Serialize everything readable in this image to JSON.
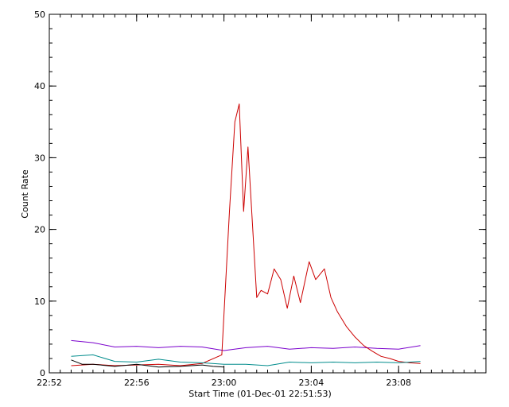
{
  "chart_data": {
    "type": "line",
    "title": "",
    "xlabel": "Start Time (01-Dec-01 22:51:53)",
    "ylabel": "Count Rate",
    "x_axis": {
      "range_minutes": [
        0,
        20
      ],
      "tick_labels": [
        "22:52",
        "22:56",
        "23:00",
        "23:04",
        "23:08"
      ],
      "tick_minutes": [
        0,
        4,
        8,
        12,
        16
      ],
      "minor_tick_step_minutes": 0.5
    },
    "y_axis": {
      "range": [
        0,
        50
      ],
      "tick_labels": [
        "0",
        "10",
        "20",
        "30",
        "40",
        "50"
      ],
      "tick_values": [
        0,
        10,
        20,
        30,
        40,
        50
      ],
      "minor_tick_step": 2
    },
    "grid": false,
    "legend": "none",
    "series_colors": {
      "red": "#cc0000",
      "purple": "#7a00cc",
      "teal": "#008c8c",
      "black": "#000000"
    },
    "series": [
      {
        "color_key": "purple",
        "x": [
          1.0,
          2.0,
          3.0,
          4.0,
          5.0,
          6.0,
          7.0,
          8.0,
          9.0,
          10.0,
          11.0,
          12.0,
          13.0,
          14.0,
          15.0,
          16.0,
          17.0
        ],
        "y": [
          4.5,
          4.2,
          3.6,
          3.7,
          3.5,
          3.7,
          3.6,
          3.1,
          3.5,
          3.7,
          3.3,
          3.5,
          3.4,
          3.6,
          3.4,
          3.3,
          3.8
        ]
      },
      {
        "color_key": "red",
        "x": [
          1.0,
          2.0,
          3.0,
          4.0,
          5.0,
          6.0,
          7.0,
          7.9,
          8.25,
          8.5,
          8.7,
          8.9,
          9.1,
          9.3,
          9.5,
          9.7,
          10.0,
          10.3,
          10.6,
          10.9,
          11.2,
          11.5,
          11.9,
          12.2,
          12.6,
          12.9,
          13.2,
          13.6,
          14.0,
          14.4,
          14.8,
          15.2,
          15.6,
          16.0,
          16.5,
          17.0
        ],
        "y": [
          1.0,
          1.2,
          1.0,
          1.1,
          1.2,
          1.0,
          1.3,
          2.5,
          22.5,
          35.0,
          37.5,
          22.5,
          31.5,
          21.0,
          10.5,
          11.5,
          11.0,
          14.5,
          13.0,
          9.0,
          13.5,
          9.8,
          15.5,
          13.0,
          14.5,
          10.5,
          8.5,
          6.5,
          5.0,
          3.8,
          3.0,
          2.3,
          2.0,
          1.6,
          1.4,
          1.3
        ]
      },
      {
        "color_key": "teal",
        "x": [
          1.0,
          2.0,
          3.0,
          4.0,
          5.0,
          6.0,
          7.0,
          8.0,
          9.0,
          10.0,
          11.0,
          12.0,
          13.0,
          14.0,
          15.0,
          16.0,
          17.0
        ],
        "y": [
          2.3,
          2.5,
          1.6,
          1.5,
          1.9,
          1.5,
          1.4,
          1.2,
          1.2,
          1.0,
          1.5,
          1.4,
          1.5,
          1.4,
          1.5,
          1.4,
          1.6
        ]
      },
      {
        "color_key": "black",
        "x": [
          1.0,
          1.5,
          2.0,
          3.0,
          4.0,
          5.0,
          6.0,
          7.0,
          7.5,
          8.0
        ],
        "y": [
          1.8,
          1.2,
          1.2,
          0.9,
          1.2,
          0.8,
          0.9,
          1.1,
          0.9,
          0.8
        ]
      }
    ]
  }
}
